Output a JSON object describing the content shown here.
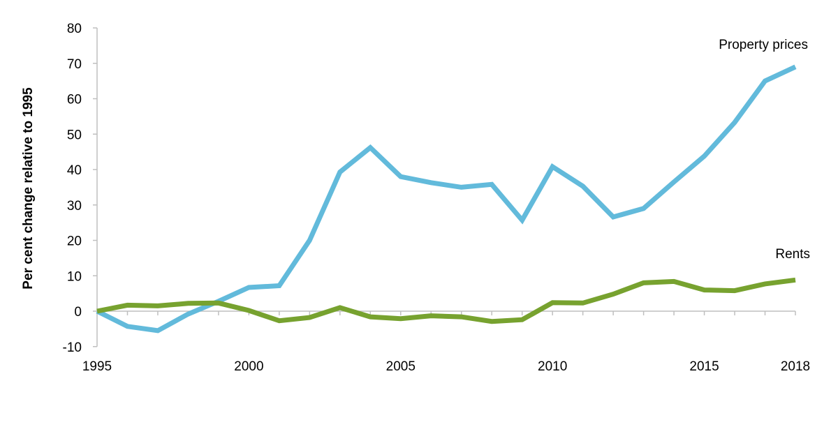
{
  "chart_data": {
    "type": "line",
    "title": "",
    "xlabel": "",
    "ylabel": "Per cent change relative to 1995",
    "ylim": [
      -10,
      80
    ],
    "yticks": [
      -10,
      0,
      10,
      20,
      30,
      40,
      50,
      60,
      70,
      80
    ],
    "x": [
      1995,
      1996,
      1997,
      1998,
      1999,
      2000,
      2001,
      2002,
      2003,
      2004,
      2005,
      2006,
      2007,
      2008,
      2009,
      2010,
      2011,
      2012,
      2013,
      2014,
      2015,
      2016,
      2017,
      2018
    ],
    "xtick_labels": [
      "1995",
      "2000",
      "2005",
      "2010",
      "2015",
      "2018"
    ],
    "grid": false,
    "legend": "inline labels at line ends",
    "series": [
      {
        "name": "Property prices",
        "color": "#62BADB",
        "values": [
          0,
          -4.3,
          -5.5,
          -0.8,
          2.8,
          6.7,
          7.2,
          20,
          39.3,
          46.2,
          38,
          36.3,
          35,
          35.8,
          25.7,
          40.8,
          35.3,
          26.6,
          29,
          36.5,
          43.8,
          53.3,
          65,
          69
        ]
      },
      {
        "name": "Rents",
        "color": "#77A22F",
        "values": [
          0,
          1.7,
          1.5,
          2.2,
          2.3,
          0.2,
          -2.7,
          -1.8,
          1,
          -1.6,
          -2.1,
          -1.3,
          -1.6,
          -2.9,
          -2.4,
          2.4,
          2.3,
          4.8,
          8,
          8.4,
          6,
          5.8,
          7.7,
          8.8
        ]
      }
    ]
  },
  "labels": {
    "ylabel": "Per cent change relative to 1995",
    "property": "Property prices",
    "rents": "Rents"
  }
}
